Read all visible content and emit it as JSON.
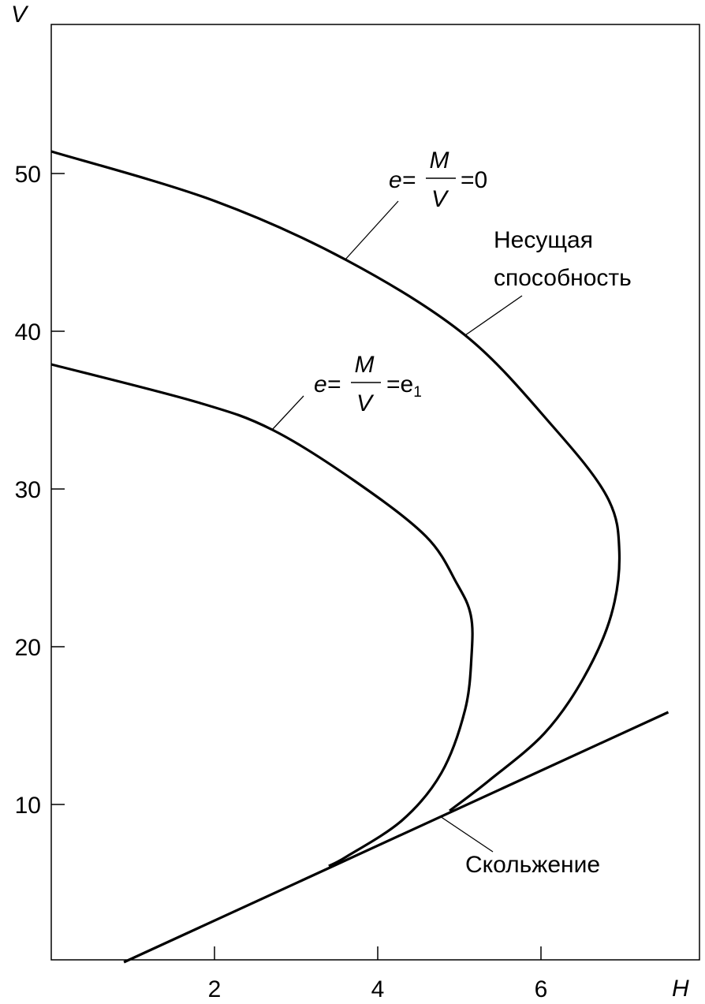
{
  "chart_data": {
    "type": "line",
    "title": "",
    "xlabel": "H",
    "ylabel": "V",
    "xlim": [
      0,
      7.9
    ],
    "ylim": [
      0,
      59.5
    ],
    "xticks": [
      "2",
      "4",
      "6"
    ],
    "xtick_values": [
      2,
      4,
      6
    ],
    "yticks": [
      "10",
      "20",
      "30",
      "40",
      "50"
    ],
    "ytick_values": [
      10,
      20,
      30,
      40,
      50
    ],
    "grid": false,
    "series": [
      {
        "name": "Несущая способность (e = M/V = 0)",
        "x": [
          0,
          1.98,
          3.62,
          5.07,
          6.14,
          6.81,
          6.96,
          6.86,
          6.52,
          6.04,
          5.36,
          4.88
        ],
        "y": [
          51.4,
          48.3,
          44.5,
          39.75,
          34,
          29.5,
          26,
          22,
          18,
          14.5,
          11.5,
          9.6
        ]
      },
      {
        "name": "e = M/V = e1",
        "x": [
          0,
          1.79,
          2.71,
          3.72,
          4.59,
          4.97,
          5.14,
          5.15,
          5.07,
          4.78,
          4.3,
          3.62,
          3.4
        ],
        "y": [
          37.9,
          35.5,
          33.75,
          30.5,
          27,
          24,
          22,
          19.5,
          16,
          12,
          9,
          6.7,
          6.1
        ]
      },
      {
        "name": "Скольжение",
        "x": [
          0.89,
          7.56
        ],
        "y": [
          0,
          15.85
        ]
      }
    ],
    "annotations": {
      "e0": {
        "lhs": "e=",
        "num": "M",
        "den": "V",
        "rhs": "=0"
      },
      "e1": {
        "lhs": "e=",
        "num": "M",
        "den": "V",
        "rhs": "=e",
        "sub": "1"
      },
      "capacity_line1": "Несущая",
      "capacity_line2": "способность",
      "sliding": "Скольжение"
    }
  }
}
